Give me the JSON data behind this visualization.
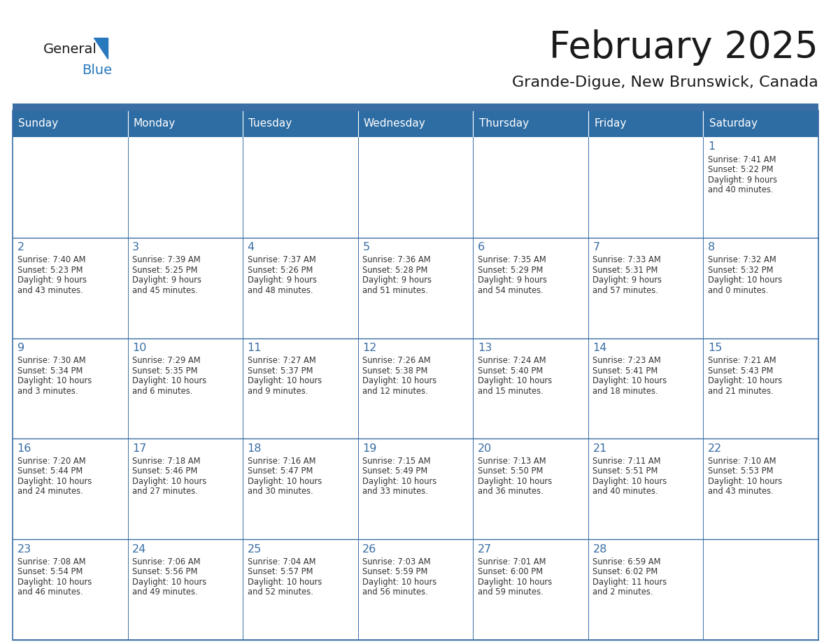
{
  "title": "February 2025",
  "subtitle": "Grande-Digue, New Brunswick, Canada",
  "days_of_week": [
    "Sunday",
    "Monday",
    "Tuesday",
    "Wednesday",
    "Thursday",
    "Friday",
    "Saturday"
  ],
  "header_bg": "#2E6DA4",
  "header_text": "#FFFFFF",
  "cell_bg": "#FFFFFF",
  "cell_border": "#3A6EA5",
  "row_border": "#3A6EA5",
  "title_color": "#1a1a1a",
  "subtitle_color": "#1a1a1a",
  "day_number_color": "#3A6EA5",
  "cell_text_color": "#333333",
  "logo_general_color": "#1a1a1a",
  "logo_blue_color": "#2878BE",
  "separator_color": "#3A6EA5",
  "calendar": [
    [
      null,
      null,
      null,
      null,
      null,
      null,
      {
        "day": 1,
        "sunrise": "7:41 AM",
        "sunset": "5:22 PM",
        "daylight": "9 hours\nand 40 minutes."
      }
    ],
    [
      {
        "day": 2,
        "sunrise": "7:40 AM",
        "sunset": "5:23 PM",
        "daylight": "9 hours\nand 43 minutes."
      },
      {
        "day": 3,
        "sunrise": "7:39 AM",
        "sunset": "5:25 PM",
        "daylight": "9 hours\nand 45 minutes."
      },
      {
        "day": 4,
        "sunrise": "7:37 AM",
        "sunset": "5:26 PM",
        "daylight": "9 hours\nand 48 minutes."
      },
      {
        "day": 5,
        "sunrise": "7:36 AM",
        "sunset": "5:28 PM",
        "daylight": "9 hours\nand 51 minutes."
      },
      {
        "day": 6,
        "sunrise": "7:35 AM",
        "sunset": "5:29 PM",
        "daylight": "9 hours\nand 54 minutes."
      },
      {
        "day": 7,
        "sunrise": "7:33 AM",
        "sunset": "5:31 PM",
        "daylight": "9 hours\nand 57 minutes."
      },
      {
        "day": 8,
        "sunrise": "7:32 AM",
        "sunset": "5:32 PM",
        "daylight": "10 hours\nand 0 minutes."
      }
    ],
    [
      {
        "day": 9,
        "sunrise": "7:30 AM",
        "sunset": "5:34 PM",
        "daylight": "10 hours\nand 3 minutes."
      },
      {
        "day": 10,
        "sunrise": "7:29 AM",
        "sunset": "5:35 PM",
        "daylight": "10 hours\nand 6 minutes."
      },
      {
        "day": 11,
        "sunrise": "7:27 AM",
        "sunset": "5:37 PM",
        "daylight": "10 hours\nand 9 minutes."
      },
      {
        "day": 12,
        "sunrise": "7:26 AM",
        "sunset": "5:38 PM",
        "daylight": "10 hours\nand 12 minutes."
      },
      {
        "day": 13,
        "sunrise": "7:24 AM",
        "sunset": "5:40 PM",
        "daylight": "10 hours\nand 15 minutes."
      },
      {
        "day": 14,
        "sunrise": "7:23 AM",
        "sunset": "5:41 PM",
        "daylight": "10 hours\nand 18 minutes."
      },
      {
        "day": 15,
        "sunrise": "7:21 AM",
        "sunset": "5:43 PM",
        "daylight": "10 hours\nand 21 minutes."
      }
    ],
    [
      {
        "day": 16,
        "sunrise": "7:20 AM",
        "sunset": "5:44 PM",
        "daylight": "10 hours\nand 24 minutes."
      },
      {
        "day": 17,
        "sunrise": "7:18 AM",
        "sunset": "5:46 PM",
        "daylight": "10 hours\nand 27 minutes."
      },
      {
        "day": 18,
        "sunrise": "7:16 AM",
        "sunset": "5:47 PM",
        "daylight": "10 hours\nand 30 minutes."
      },
      {
        "day": 19,
        "sunrise": "7:15 AM",
        "sunset": "5:49 PM",
        "daylight": "10 hours\nand 33 minutes."
      },
      {
        "day": 20,
        "sunrise": "7:13 AM",
        "sunset": "5:50 PM",
        "daylight": "10 hours\nand 36 minutes."
      },
      {
        "day": 21,
        "sunrise": "7:11 AM",
        "sunset": "5:51 PM",
        "daylight": "10 hours\nand 40 minutes."
      },
      {
        "day": 22,
        "sunrise": "7:10 AM",
        "sunset": "5:53 PM",
        "daylight": "10 hours\nand 43 minutes."
      }
    ],
    [
      {
        "day": 23,
        "sunrise": "7:08 AM",
        "sunset": "5:54 PM",
        "daylight": "10 hours\nand 46 minutes."
      },
      {
        "day": 24,
        "sunrise": "7:06 AM",
        "sunset": "5:56 PM",
        "daylight": "10 hours\nand 49 minutes."
      },
      {
        "day": 25,
        "sunrise": "7:04 AM",
        "sunset": "5:57 PM",
        "daylight": "10 hours\nand 52 minutes."
      },
      {
        "day": 26,
        "sunrise": "7:03 AM",
        "sunset": "5:59 PM",
        "daylight": "10 hours\nand 56 minutes."
      },
      {
        "day": 27,
        "sunrise": "7:01 AM",
        "sunset": "6:00 PM",
        "daylight": "10 hours\nand 59 minutes."
      },
      {
        "day": 28,
        "sunrise": "6:59 AM",
        "sunset": "6:02 PM",
        "daylight": "11 hours\nand 2 minutes."
      },
      null
    ]
  ]
}
